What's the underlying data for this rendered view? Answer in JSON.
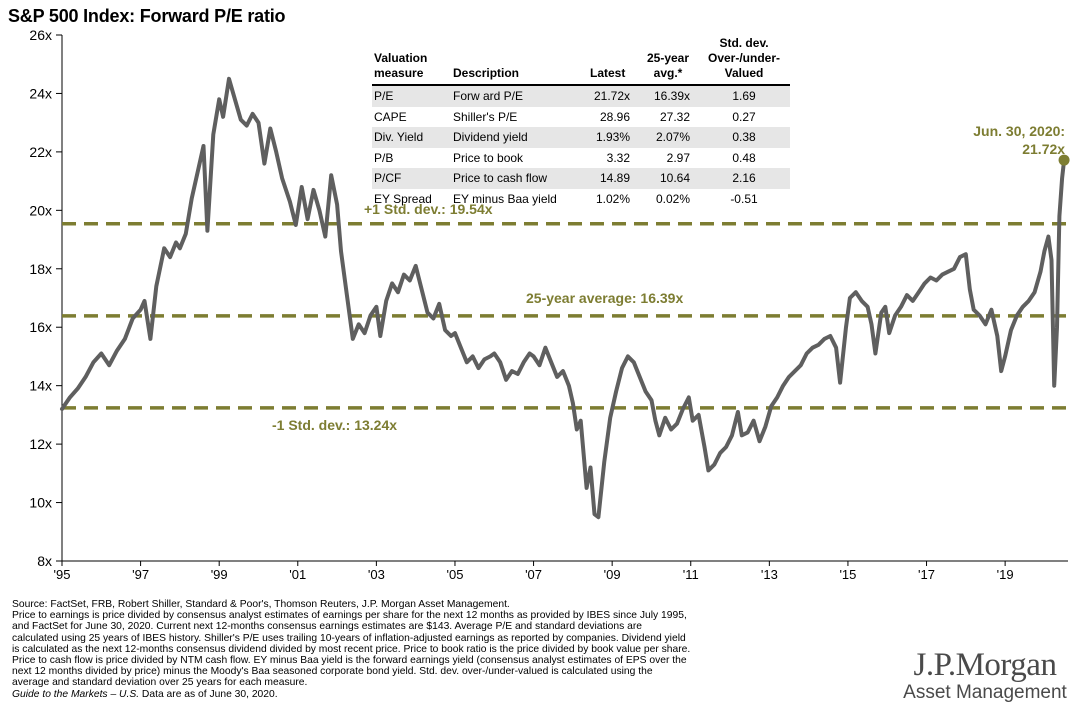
{
  "title": "S&P 500 Index: Forward P/E ratio",
  "colors": {
    "line": "#5f5f5f",
    "reference": "#7d7d32",
    "endpoint": "#7d7d32"
  },
  "table": {
    "headers": {
      "measure": [
        "Valuation",
        "measure"
      ],
      "description": "Description",
      "latest": "Latest",
      "avg": [
        "25-year",
        "avg.*"
      ],
      "std": [
        "Std. dev.",
        "Over-/under-",
        "Valued"
      ]
    },
    "rows": [
      {
        "measure": "P/E",
        "description": "Forw ard P/E",
        "latest": "21.72x",
        "avg": "16.39x",
        "std": "1.69"
      },
      {
        "measure": "CAPE",
        "description": "Shiller's P/E",
        "latest": "28.96",
        "avg": "27.32",
        "std": "0.27"
      },
      {
        "measure": "Div. Yield",
        "description": "Dividend yield",
        "latest": "1.93%",
        "avg": "2.07%",
        "std": "0.38"
      },
      {
        "measure": "P/B",
        "description": "Price to book",
        "latest": "3.32",
        "avg": "2.97",
        "std": "0.48"
      },
      {
        "measure": "P/CF",
        "description": "Price to cash flow",
        "latest": "14.89",
        "avg": "10.64",
        "std": "2.16"
      },
      {
        "measure": "EY Spread",
        "description": "EY minus Baa yield",
        "latest": "1.02%",
        "avg": "0.02%",
        "std": "-0.51"
      }
    ]
  },
  "chart_data": {
    "type": "line",
    "title": "S&P 500 Index: Forward P/E ratio",
    "xlabel": "",
    "ylabel": "",
    "x_ticks": [
      "'95",
      "'97",
      "'99",
      "'01",
      "'03",
      "'05",
      "'07",
      "'09",
      "'11",
      "'13",
      "'15",
      "'17",
      "'19"
    ],
    "y_ticks": [
      "8x",
      "10x",
      "12x",
      "14x",
      "16x",
      "18x",
      "20x",
      "22x",
      "24x",
      "26x"
    ],
    "xlim": [
      1995,
      2020.6
    ],
    "ylim": [
      8,
      26
    ],
    "grid": false,
    "reference_lines": [
      {
        "label": "+1 Std. dev.: 19.54x",
        "value": 19.54
      },
      {
        "label": "25-year average: 16.39x",
        "value": 16.39
      },
      {
        "label": "-1 Std. dev.: 13.24x",
        "value": 13.24
      }
    ],
    "annotation": {
      "label": [
        "Jun. 30, 2020:",
        "21.72x"
      ],
      "x": 2020.5,
      "y": 21.72
    },
    "series": [
      {
        "points": [
          [
            1995.0,
            13.2
          ],
          [
            1995.2,
            13.6
          ],
          [
            1995.4,
            13.9
          ],
          [
            1995.6,
            14.3
          ],
          [
            1995.8,
            14.8
          ],
          [
            1996.0,
            15.1
          ],
          [
            1996.2,
            14.7
          ],
          [
            1996.4,
            15.2
          ],
          [
            1996.6,
            15.6
          ],
          [
            1996.8,
            16.3
          ],
          [
            1997.0,
            16.6
          ],
          [
            1997.1,
            16.9
          ],
          [
            1997.25,
            15.6
          ],
          [
            1997.4,
            17.4
          ],
          [
            1997.6,
            18.7
          ],
          [
            1997.75,
            18.4
          ],
          [
            1997.9,
            18.9
          ],
          [
            1998.0,
            18.7
          ],
          [
            1998.15,
            19.2
          ],
          [
            1998.3,
            20.4
          ],
          [
            1998.45,
            21.3
          ],
          [
            1998.6,
            22.2
          ],
          [
            1998.7,
            19.3
          ],
          [
            1998.85,
            22.6
          ],
          [
            1999.0,
            23.8
          ],
          [
            1999.1,
            23.2
          ],
          [
            1999.25,
            24.5
          ],
          [
            1999.4,
            23.8
          ],
          [
            1999.55,
            23.1
          ],
          [
            1999.7,
            22.9
          ],
          [
            1999.85,
            23.3
          ],
          [
            2000.0,
            23.0
          ],
          [
            2000.15,
            21.6
          ],
          [
            2000.3,
            22.8
          ],
          [
            2000.45,
            22.0
          ],
          [
            2000.6,
            21.1
          ],
          [
            2000.8,
            20.3
          ],
          [
            2000.95,
            19.5
          ],
          [
            2001.1,
            20.8
          ],
          [
            2001.25,
            19.7
          ],
          [
            2001.4,
            20.7
          ],
          [
            2001.55,
            20.0
          ],
          [
            2001.7,
            19.1
          ],
          [
            2001.85,
            21.2
          ],
          [
            2002.0,
            20.2
          ],
          [
            2002.1,
            18.6
          ],
          [
            2002.25,
            17.1
          ],
          [
            2002.4,
            15.6
          ],
          [
            2002.55,
            16.1
          ],
          [
            2002.7,
            15.8
          ],
          [
            2002.85,
            16.4
          ],
          [
            2003.0,
            16.7
          ],
          [
            2003.1,
            15.7
          ],
          [
            2003.25,
            16.9
          ],
          [
            2003.4,
            17.5
          ],
          [
            2003.55,
            17.2
          ],
          [
            2003.7,
            17.8
          ],
          [
            2003.85,
            17.6
          ],
          [
            2004.0,
            18.1
          ],
          [
            2004.15,
            17.3
          ],
          [
            2004.3,
            16.5
          ],
          [
            2004.45,
            16.3
          ],
          [
            2004.6,
            16.8
          ],
          [
            2004.75,
            15.9
          ],
          [
            2004.9,
            15.7
          ],
          [
            2005.0,
            15.8
          ],
          [
            2005.15,
            15.3
          ],
          [
            2005.3,
            14.8
          ],
          [
            2005.45,
            15.0
          ],
          [
            2005.6,
            14.6
          ],
          [
            2005.75,
            14.9
          ],
          [
            2005.9,
            15.0
          ],
          [
            2006.0,
            15.1
          ],
          [
            2006.15,
            14.8
          ],
          [
            2006.3,
            14.2
          ],
          [
            2006.45,
            14.5
          ],
          [
            2006.6,
            14.4
          ],
          [
            2006.75,
            14.8
          ],
          [
            2006.9,
            15.1
          ],
          [
            2007.0,
            15.0
          ],
          [
            2007.15,
            14.7
          ],
          [
            2007.3,
            15.3
          ],
          [
            2007.45,
            14.8
          ],
          [
            2007.6,
            14.3
          ],
          [
            2007.75,
            14.5
          ],
          [
            2007.9,
            14.0
          ],
          [
            2008.0,
            13.4
          ],
          [
            2008.1,
            12.5
          ],
          [
            2008.2,
            12.8
          ],
          [
            2008.35,
            10.5
          ],
          [
            2008.45,
            11.2
          ],
          [
            2008.55,
            9.6
          ],
          [
            2008.65,
            9.5
          ],
          [
            2008.8,
            11.4
          ],
          [
            2008.95,
            12.9
          ],
          [
            2009.1,
            13.8
          ],
          [
            2009.25,
            14.6
          ],
          [
            2009.4,
            15.0
          ],
          [
            2009.55,
            14.8
          ],
          [
            2009.7,
            14.3
          ],
          [
            2009.85,
            13.8
          ],
          [
            2010.0,
            13.5
          ],
          [
            2010.1,
            12.8
          ],
          [
            2010.2,
            12.3
          ],
          [
            2010.35,
            12.9
          ],
          [
            2010.5,
            12.5
          ],
          [
            2010.65,
            12.7
          ],
          [
            2010.8,
            13.2
          ],
          [
            2010.95,
            13.6
          ],
          [
            2011.05,
            12.8
          ],
          [
            2011.2,
            13.0
          ],
          [
            2011.35,
            11.9
          ],
          [
            2011.45,
            11.1
          ],
          [
            2011.6,
            11.3
          ],
          [
            2011.75,
            11.7
          ],
          [
            2011.9,
            11.9
          ],
          [
            2012.05,
            12.3
          ],
          [
            2012.2,
            13.1
          ],
          [
            2012.3,
            12.3
          ],
          [
            2012.45,
            12.4
          ],
          [
            2012.6,
            12.8
          ],
          [
            2012.75,
            12.1
          ],
          [
            2012.9,
            12.6
          ],
          [
            2013.05,
            13.3
          ],
          [
            2013.2,
            13.6
          ],
          [
            2013.35,
            14.0
          ],
          [
            2013.5,
            14.3
          ],
          [
            2013.65,
            14.5
          ],
          [
            2013.8,
            14.7
          ],
          [
            2013.95,
            15.1
          ],
          [
            2014.1,
            15.3
          ],
          [
            2014.25,
            15.4
          ],
          [
            2014.4,
            15.6
          ],
          [
            2014.55,
            15.7
          ],
          [
            2014.7,
            15.3
          ],
          [
            2014.8,
            14.1
          ],
          [
            2014.95,
            16.0
          ],
          [
            2015.05,
            17.0
          ],
          [
            2015.2,
            17.2
          ],
          [
            2015.35,
            16.9
          ],
          [
            2015.5,
            16.7
          ],
          [
            2015.6,
            16.1
          ],
          [
            2015.7,
            15.1
          ],
          [
            2015.85,
            16.5
          ],
          [
            2015.95,
            16.7
          ],
          [
            2016.05,
            15.8
          ],
          [
            2016.2,
            16.4
          ],
          [
            2016.35,
            16.7
          ],
          [
            2016.5,
            17.1
          ],
          [
            2016.65,
            16.9
          ],
          [
            2016.8,
            17.2
          ],
          [
            2016.95,
            17.5
          ],
          [
            2017.1,
            17.7
          ],
          [
            2017.25,
            17.6
          ],
          [
            2017.4,
            17.8
          ],
          [
            2017.55,
            17.9
          ],
          [
            2017.7,
            18.0
          ],
          [
            2017.85,
            18.4
          ],
          [
            2018.0,
            18.5
          ],
          [
            2018.1,
            17.3
          ],
          [
            2018.2,
            16.6
          ],
          [
            2018.35,
            16.4
          ],
          [
            2018.5,
            16.1
          ],
          [
            2018.65,
            16.6
          ],
          [
            2018.8,
            15.7
          ],
          [
            2018.9,
            14.5
          ],
          [
            2019.0,
            15.0
          ],
          [
            2019.15,
            15.9
          ],
          [
            2019.3,
            16.4
          ],
          [
            2019.45,
            16.7
          ],
          [
            2019.6,
            16.9
          ],
          [
            2019.75,
            17.2
          ],
          [
            2019.9,
            17.9
          ],
          [
            2020.0,
            18.6
          ],
          [
            2020.1,
            19.1
          ],
          [
            2020.18,
            18.3
          ],
          [
            2020.25,
            14.0
          ],
          [
            2020.32,
            16.0
          ],
          [
            2020.38,
            19.8
          ],
          [
            2020.45,
            21.1
          ],
          [
            2020.5,
            21.72
          ]
        ]
      }
    ]
  },
  "footer": {
    "lines": [
      "Source: FactSet, FRB, Robert Shiller, Standard & Poor's, Thomson Reuters, J.P. Morgan Asset Management.",
      "Price to earnings is price divided by consensus analyst estimates of earnings per share for the next 12 months as provided by IBES since July 1995,",
      "and FactSet for June 30, 2020. Current next 12-months consensus earnings estimates are $143. Average P/E and standard deviations are",
      "calculated using 25 years of IBES history. Shiller's P/E uses trailing 10-years of inflation-adjusted earnings as reported by companies. Dividend yield",
      "is calculated as the next 12-months consensus dividend divided by most recent price. Price to book ratio is the price divided by book value per share.",
      "Price to cash flow is price divided by NTM cash flow. EY minus Baa yield is the forward earnings yield (consensus analyst estimates of EPS over the",
      "next 12 months divided by price) minus the Moody's Baa seasoned corporate bond yield. Std. dev. over-/under-valued is calculated using the",
      "average and standard deviation over 25 years for each measure."
    ],
    "guide_italic": "Guide to the Markets – U.S.",
    "guide_rest": " Data are as of June 30, 2020."
  },
  "logo": {
    "top": "J.P.Morgan",
    "bottom": "Asset Management"
  }
}
